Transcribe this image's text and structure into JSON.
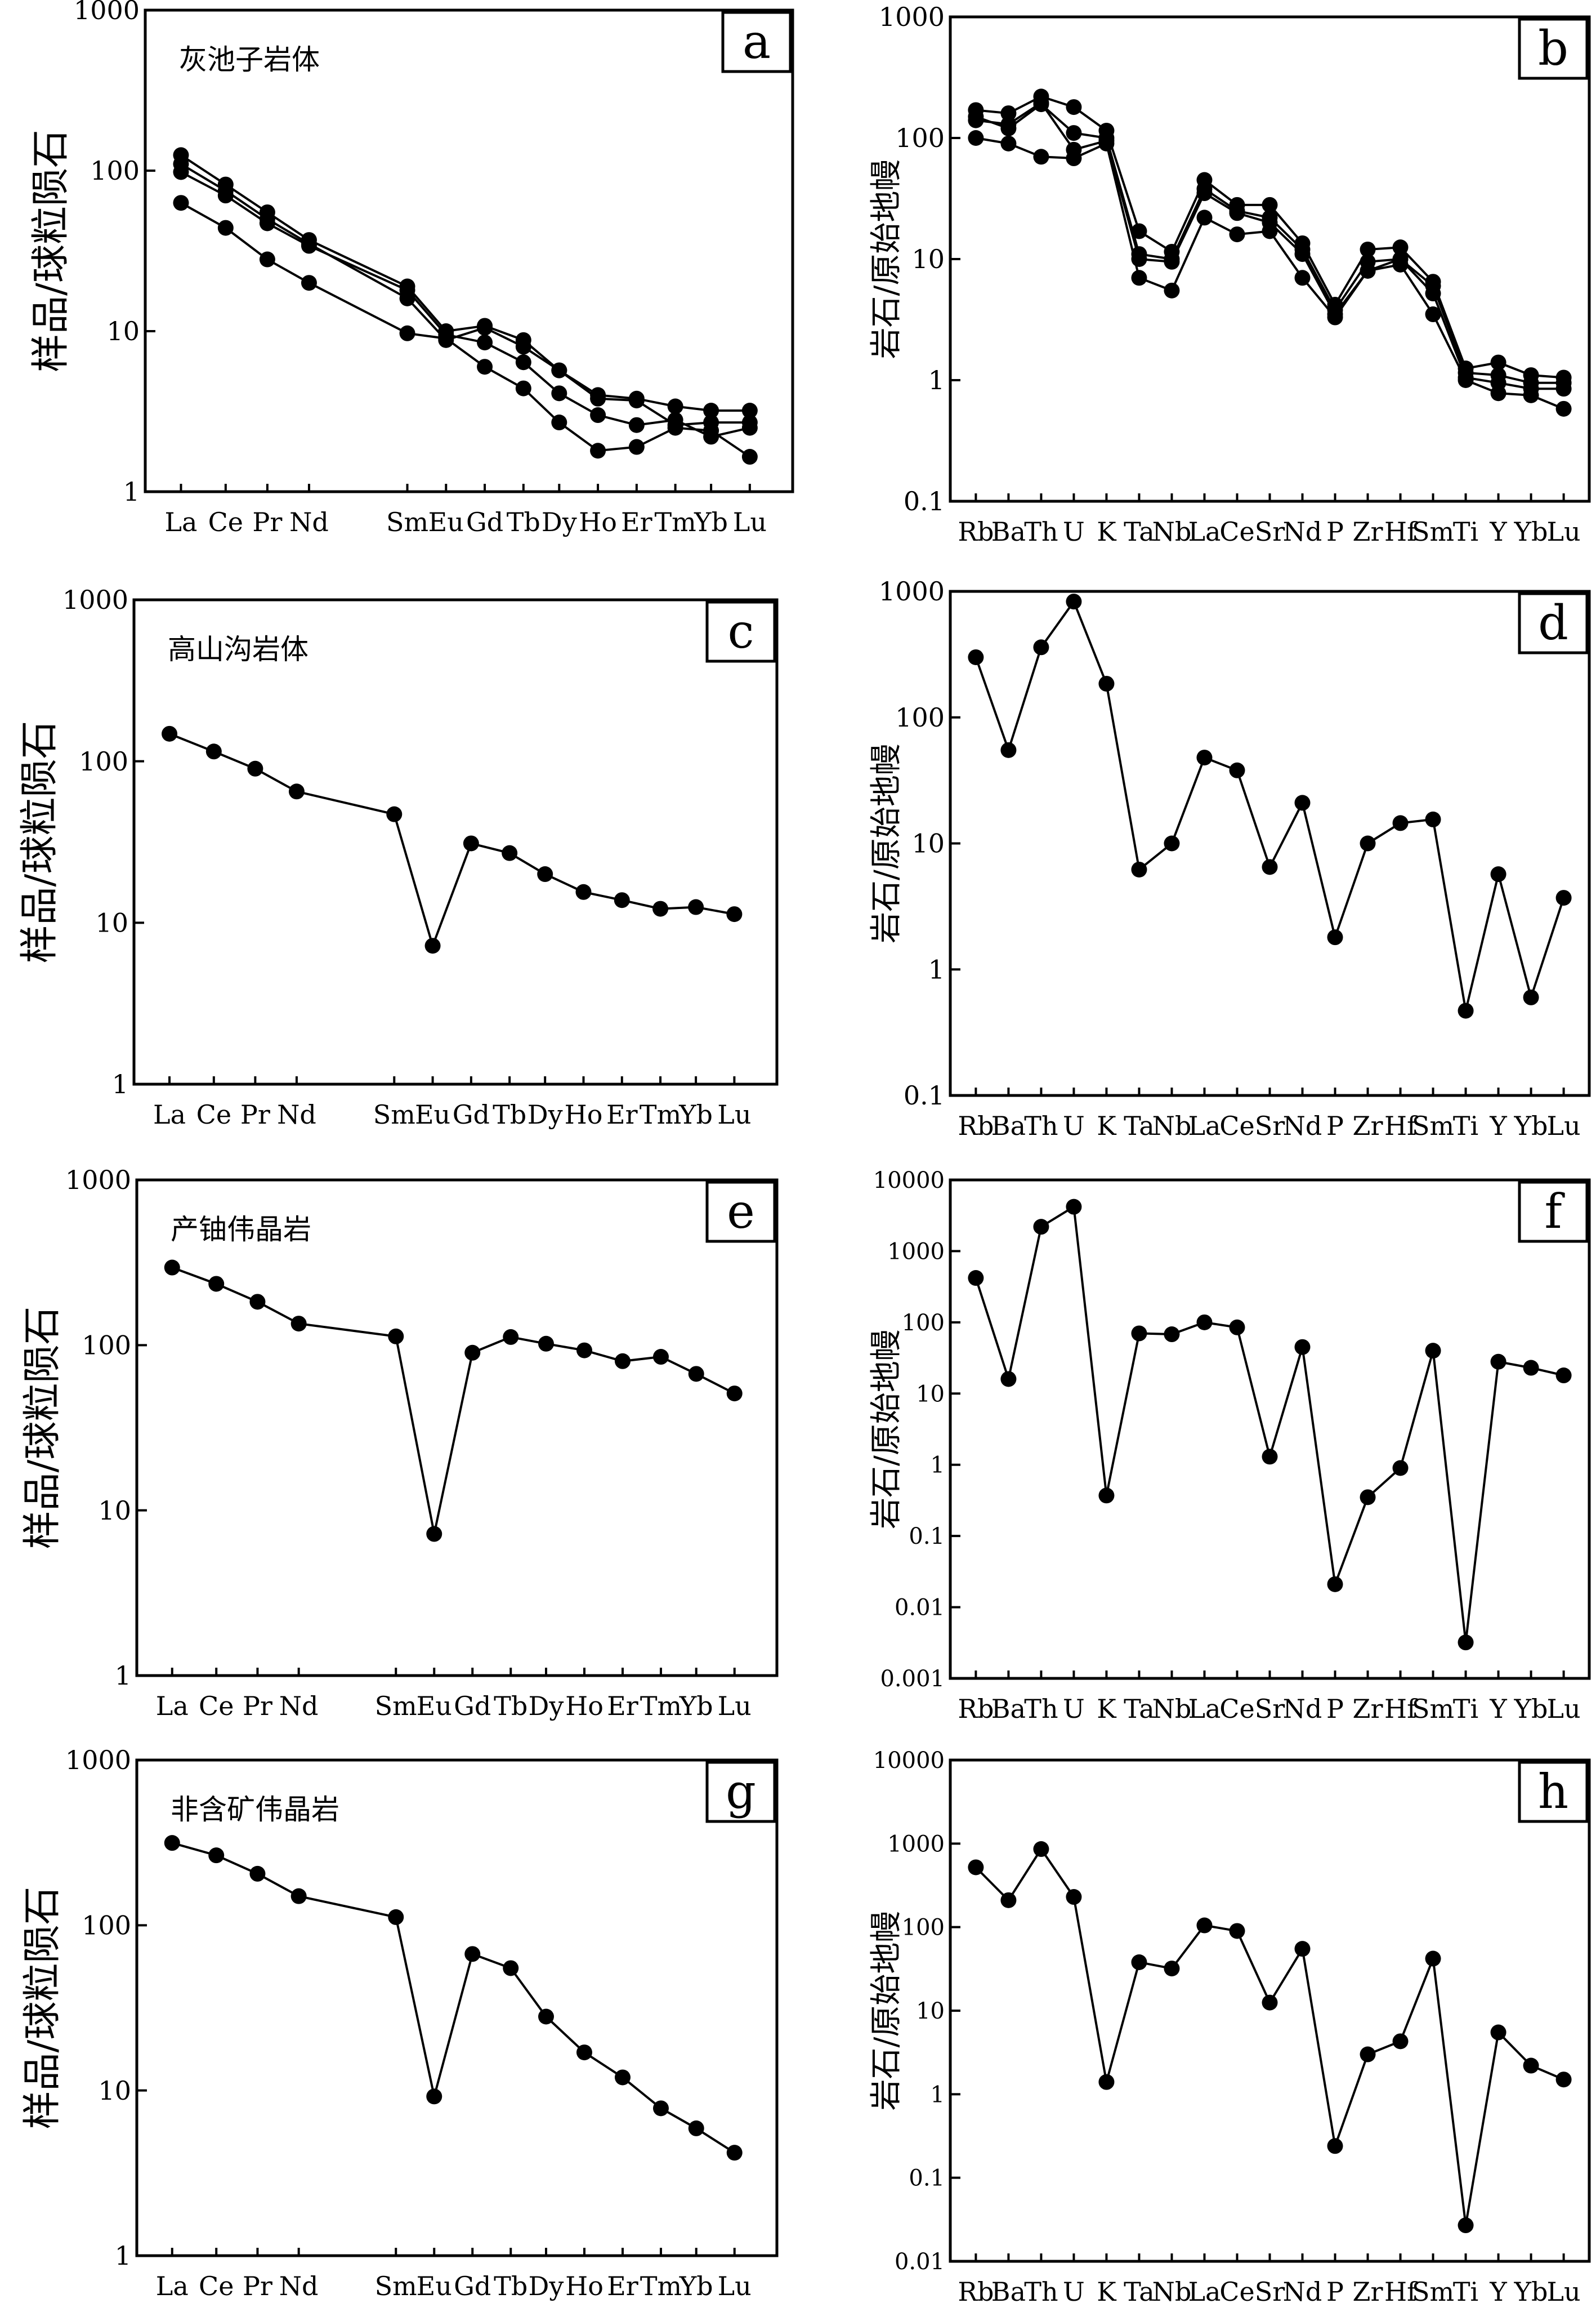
{
  "reelements": [
    "La",
    "Ce",
    "Pr",
    "Nd",
    "Sm",
    "Eu",
    "Gd",
    "Tb",
    "Dy",
    "Ho",
    "Er",
    "Tm",
    "Yb",
    "Lu"
  ],
  "spider_elements": [
    "Rb",
    "Ba",
    "Th",
    "U",
    "K",
    "Ta",
    "Nb",
    "La",
    "Ce",
    "Sr",
    "Nd",
    "P",
    "Zr",
    "Hf",
    "Sm",
    "Ti",
    "Y",
    "Yb",
    "Lu"
  ],
  "ree_ylabel": "样品/球粒陨石",
  "spider_ylabel": "岩石/原始地幔",
  "chart_data": [
    {
      "id": "a",
      "type": "line",
      "title": "灰池子岩体",
      "letter": "a",
      "ylabel": "样品/球粒陨石",
      "yscale": "log",
      "ylim": [
        1,
        1000
      ],
      "yticks": [
        "1",
        "10",
        "100",
        "1000"
      ],
      "categories": [
        "La",
        "Ce",
        "Pr",
        "Nd",
        "Sm",
        "Eu",
        "Gd",
        "Tb",
        "Dy",
        "Ho",
        "Er",
        "Tm",
        "Yb",
        "Lu"
      ],
      "series": [
        {
          "values": [
            125,
            82,
            55,
            37,
            19,
            10,
            10.8,
            8.8,
            5.7,
            4.0,
            3.8,
            3.4,
            3.2,
            3.2
          ]
        },
        {
          "values": [
            110,
            75,
            50,
            35,
            16,
            8.8,
            10.5,
            8.0,
            5.7,
            3.8,
            3.7,
            2.6,
            2.7,
            2.7
          ]
        },
        {
          "values": [
            98,
            70,
            47,
            34,
            18,
            9.5,
            8.5,
            6.4,
            4.1,
            3.0,
            2.6,
            2.8,
            2.2,
            2.5
          ]
        },
        {
          "values": [
            63,
            44,
            28,
            20,
            9.7,
            9.0,
            6.0,
            4.4,
            2.7,
            1.8,
            1.9,
            2.5,
            2.4,
            1.65
          ]
        }
      ]
    },
    {
      "id": "b",
      "type": "line",
      "letter": "b",
      "ylabel": "岩石/原始地幔",
      "yscale": "log",
      "ylim": [
        0.1,
        1000
      ],
      "yticks": [
        "0.1",
        "1",
        "10",
        "100",
        "1000"
      ],
      "categories": [
        "Rb",
        "Ba",
        "Th",
        "U",
        "K",
        "Ta",
        "Nb",
        "La",
        "Ce",
        "Sr",
        "Nd",
        "P",
        "Zr",
        "Hf",
        "Sm",
        "Ti",
        "Y",
        "Yb",
        "Lu"
      ],
      "series": [
        {
          "values": [
            170,
            160,
            220,
            180,
            115,
            17,
            11.5,
            45,
            28,
            28,
            13.5,
            4.2,
            12,
            12.5,
            6.5,
            1.25,
            1.4,
            1.1,
            1.05
          ]
        },
        {
          "values": [
            150,
            120,
            190,
            110,
            100,
            11,
            10,
            38,
            25,
            22,
            12,
            3.8,
            9.5,
            10,
            6,
            1.15,
            1.1,
            0.95,
            0.95
          ]
        },
        {
          "values": [
            140,
            130,
            195,
            80,
            95,
            10,
            9.5,
            35,
            24,
            20,
            11,
            3.5,
            8,
            10,
            5.2,
            1.05,
            0.95,
            0.85,
            0.85
          ]
        },
        {
          "values": [
            100,
            90,
            70,
            68,
            90,
            7,
            5.5,
            22,
            16,
            17,
            7,
            3.3,
            8,
            9,
            3.5,
            1.0,
            0.78,
            0.75,
            0.58
          ]
        }
      ]
    },
    {
      "id": "c",
      "type": "line",
      "title": "高山沟岩体",
      "letter": "c",
      "ylabel": "样品/球粒陨石",
      "yscale": "log",
      "ylim": [
        1,
        1000
      ],
      "yticks": [
        "1",
        "10",
        "100",
        "1000"
      ],
      "categories": [
        "La",
        "Ce",
        "Pr",
        "Nd",
        "Sm",
        "Eu",
        "Gd",
        "Tb",
        "Dy",
        "Ho",
        "Er",
        "Tm",
        "Yb",
        "Lu"
      ],
      "series": [
        {
          "values": [
            148,
            115,
            90,
            65,
            47,
            7.2,
            31,
            27,
            20,
            15.5,
            13.8,
            12.2,
            12.5,
            11.3
          ]
        }
      ]
    },
    {
      "id": "d",
      "type": "line",
      "letter": "d",
      "ylabel": "岩石/原始地幔",
      "yscale": "log",
      "ylim": [
        0.1,
        1000
      ],
      "yticks": [
        "0.1",
        "1",
        "10",
        "100",
        "1000"
      ],
      "categories": [
        "Rb",
        "Ba",
        "Th",
        "U",
        "K",
        "Ta",
        "Nb",
        "La",
        "Ce",
        "Sr",
        "Nd",
        "P",
        "Zr",
        "Hf",
        "Sm",
        "Ti",
        "Y",
        "Yb",
        "Lu"
      ],
      "series": [
        {
          "values": [
            300,
            55,
            360,
            830,
            185,
            6.2,
            10,
            48,
            38,
            6.5,
            21,
            1.8,
            10,
            14.5,
            15.5,
            0.47,
            5.7,
            0.6,
            3.7
          ]
        }
      ]
    },
    {
      "id": "e",
      "type": "line",
      "title": "产铀伟晶岩",
      "letter": "e",
      "ylabel": "样品/球粒陨石",
      "yscale": "log",
      "ylim": [
        1,
        1000
      ],
      "yticks": [
        "1",
        "10",
        "100",
        "1000"
      ],
      "categories": [
        "La",
        "Ce",
        "Pr",
        "Nd",
        "Sm",
        "Eu",
        "Gd",
        "Tb",
        "Dy",
        "Ho",
        "Er",
        "Tm",
        "Yb",
        "Lu"
      ],
      "series": [
        {
          "values": [
            295,
            235,
            183,
            135,
            113,
            7.2,
            90,
            112,
            102,
            93,
            80,
            85,
            67,
            51
          ]
        }
      ]
    },
    {
      "id": "f",
      "type": "line",
      "letter": "f",
      "ylabel": "岩石/原始地幔",
      "yscale": "log",
      "ylim": [
        0.001,
        10000
      ],
      "yticks": [
        "0.001",
        "0.01",
        "0.1",
        "1",
        "10",
        "100",
        "1000",
        "10000"
      ],
      "categories": [
        "Rb",
        "Ba",
        "Th",
        "U",
        "K",
        "Ta",
        "Nb",
        "La",
        "Ce",
        "Sr",
        "Nd",
        "P",
        "Zr",
        "Hf",
        "Sm",
        "Ti",
        "Y",
        "Yb",
        "Lu"
      ],
      "series": [
        {
          "values": [
            420,
            16,
            2200,
            4200,
            0.37,
            70,
            68,
            100,
            85,
            1.3,
            45,
            0.021,
            0.35,
            0.9,
            40,
            0.0032,
            28,
            23,
            18
          ]
        }
      ]
    },
    {
      "id": "g",
      "type": "line",
      "title": "非含矿伟晶岩",
      "letter": "g",
      "ylabel": "样品/球粒陨石",
      "yscale": "log",
      "ylim": [
        1,
        1000
      ],
      "yticks": [
        "1",
        "10",
        "100",
        "1000"
      ],
      "categories": [
        "La",
        "Ce",
        "Pr",
        "Nd",
        "Sm",
        "Eu",
        "Gd",
        "Tb",
        "Dy",
        "Ho",
        "Er",
        "Tm",
        "Yb",
        "Lu"
      ],
      "series": [
        {
          "values": [
            315,
            265,
            205,
            150,
            112,
            9.2,
            67,
            55,
            28,
            17,
            12,
            7.8,
            5.9,
            4.2
          ]
        }
      ]
    },
    {
      "id": "h",
      "type": "line",
      "letter": "h",
      "ylabel": "岩石/原始地幔",
      "yscale": "log",
      "ylim": [
        0.01,
        10000
      ],
      "yticks": [
        "0.01",
        "0.1",
        "1",
        "10",
        "100",
        "1000",
        "10000"
      ],
      "categories": [
        "Rb",
        "Ba",
        "Th",
        "U",
        "K",
        "Ta",
        "Nb",
        "La",
        "Ce",
        "Sr",
        "Nd",
        "P",
        "Zr",
        "Hf",
        "Sm",
        "Ti",
        "Y",
        "Yb",
        "Lu"
      ],
      "series": [
        {
          "values": [
            520,
            210,
            860,
            230,
            1.4,
            38,
            32,
            105,
            90,
            12.5,
            55,
            0.24,
            3,
            4.3,
            42,
            0.027,
            5.5,
            2.2,
            1.5
          ]
        }
      ]
    }
  ]
}
